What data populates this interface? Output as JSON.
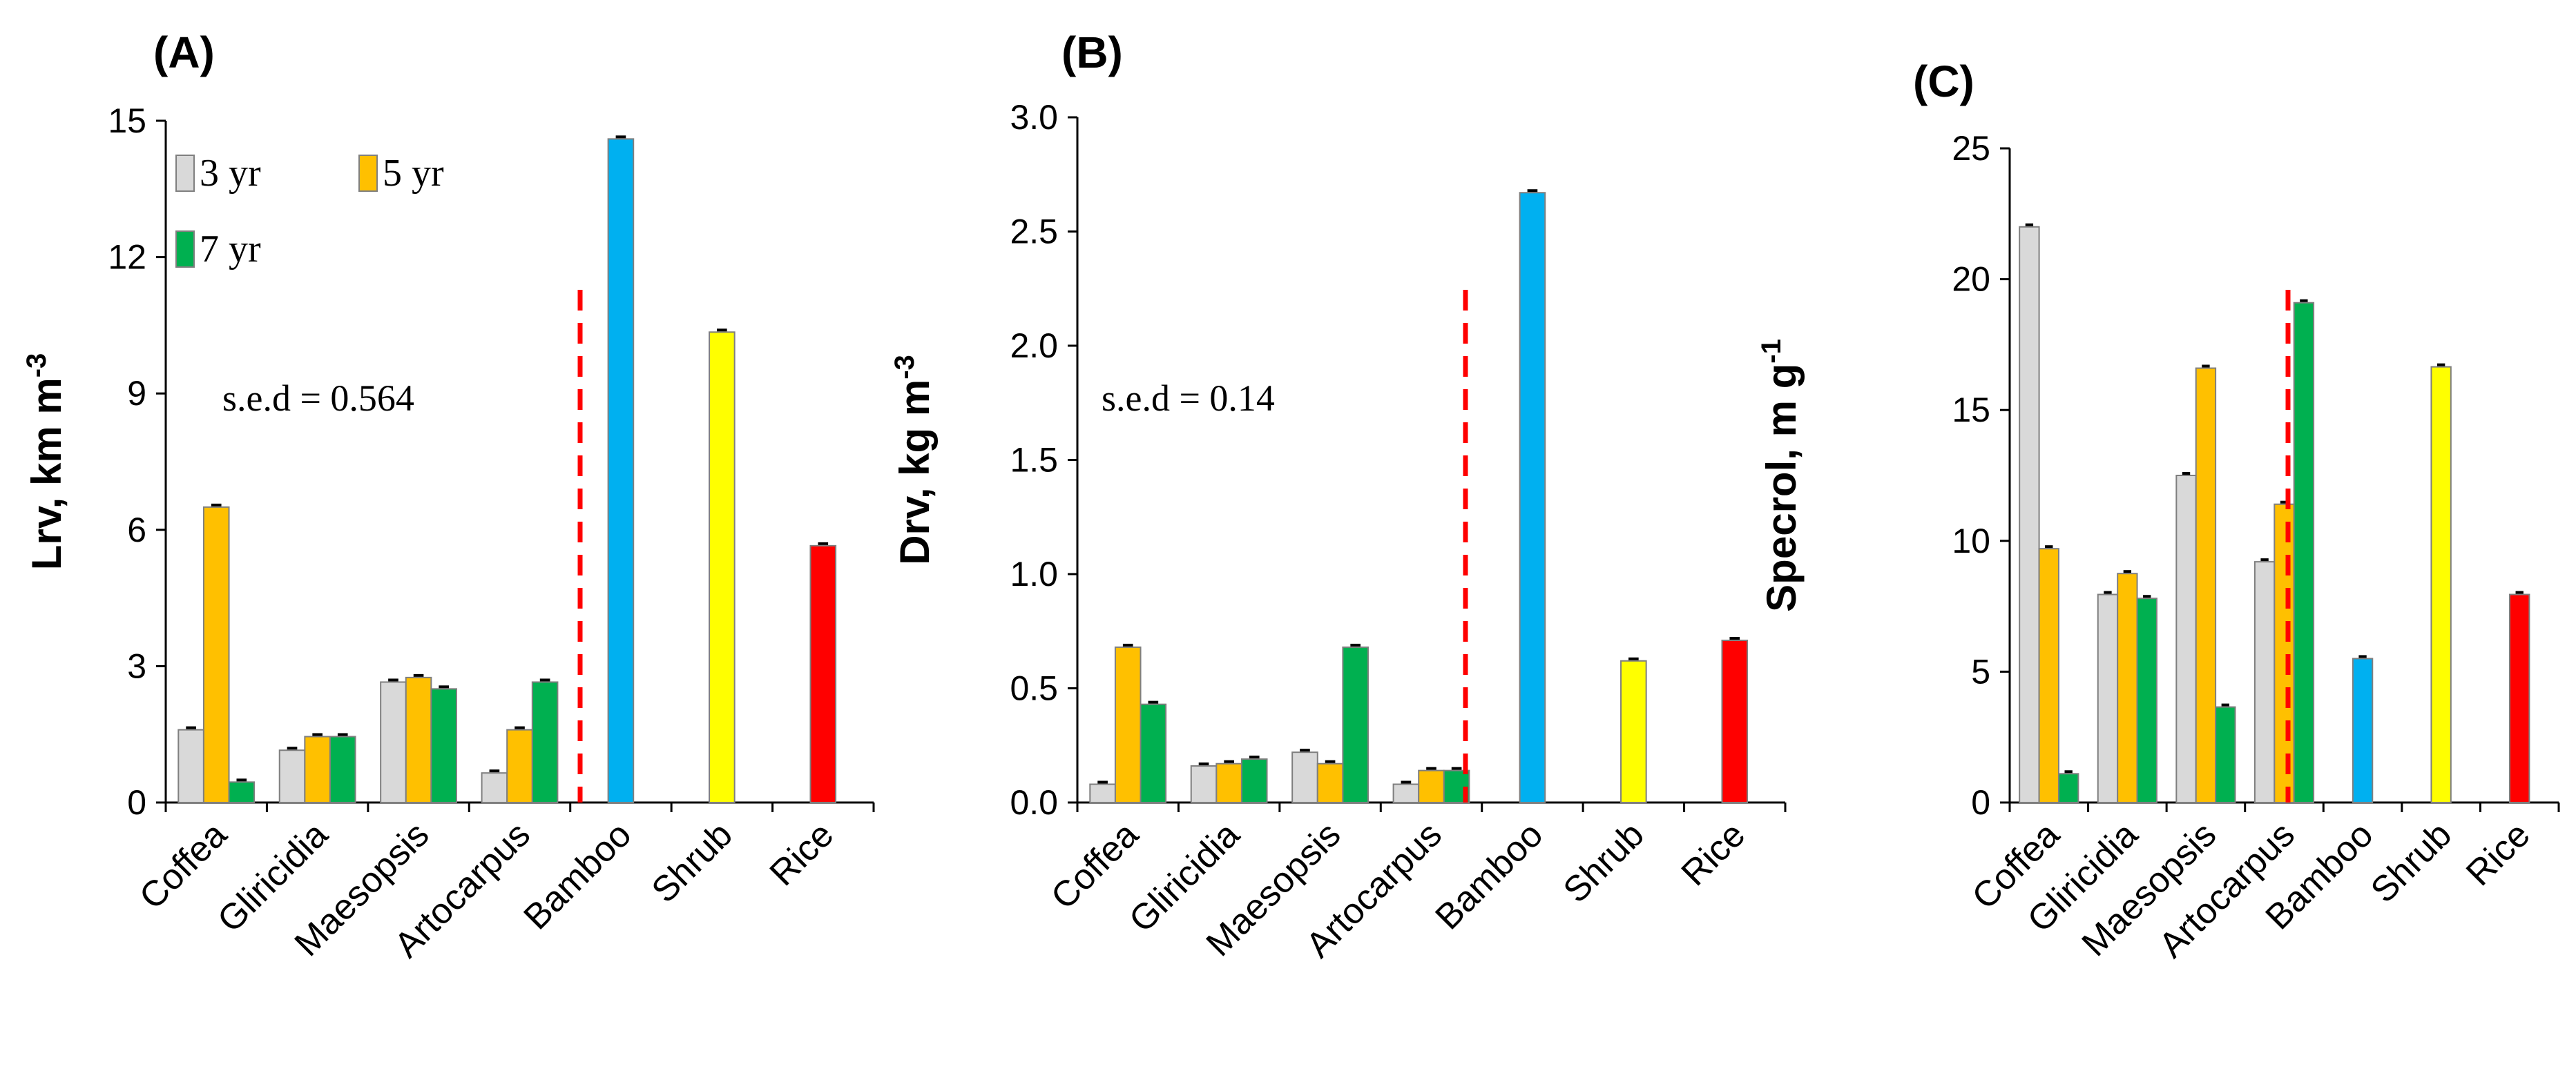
{
  "colors": {
    "3 yr": "#d9d9d9",
    "5 yr": "#ffc000",
    "7 yr": "#00b050",
    "Bamboo": "#00b0f0",
    "Shrub": "#ffff00",
    "Rice": "#ff0000",
    "divider": "#ff0000"
  },
  "legend": [
    "3 yr",
    "5 yr",
    "7 yr"
  ],
  "chart_data": [
    {
      "type": "bar",
      "panel": "(A)",
      "ylabel": "Lrv, km m",
      "ylabel_sup": "-3",
      "ylim": [
        0,
        15
      ],
      "yticks": [
        "0",
        "3",
        "6",
        "9",
        "12",
        "15"
      ],
      "annotation": "s.e.d = 0.564",
      "categories": [
        "Coffea",
        "Gliricidia",
        "Maesopsis",
        "Artocarpus",
        "Bamboo",
        "Shrub",
        "Rice"
      ],
      "series": [
        {
          "name": "3 yr",
          "values": [
            1.6,
            1.15,
            2.65,
            0.65,
            null,
            null,
            null
          ]
        },
        {
          "name": "5 yr",
          "values": [
            6.5,
            1.45,
            2.75,
            1.6,
            null,
            null,
            null
          ]
        },
        {
          "name": "7 yr",
          "values": [
            0.45,
            1.45,
            2.5,
            2.65,
            null,
            null,
            null
          ]
        }
      ],
      "singles": [
        {
          "category": "Bamboo",
          "value": 14.6
        },
        {
          "category": "Shrub",
          "value": 10.35
        },
        {
          "category": "Rice",
          "value": 5.65
        }
      ]
    },
    {
      "type": "bar",
      "panel": "(B)",
      "ylabel": "Drv, kg m",
      "ylabel_sup": "-3",
      "ylim": [
        0,
        3.0
      ],
      "yticks": [
        "0.0",
        "0.5",
        "1.0",
        "1.5",
        "2.0",
        "2.5",
        "3.0"
      ],
      "annotation": "s.e.d = 0.14",
      "categories": [
        "Coffea",
        "Gliricidia",
        "Maesopsis",
        "Artocarpus",
        "Bamboo",
        "Shrub",
        "Rice"
      ],
      "series": [
        {
          "name": "3 yr",
          "values": [
            0.08,
            0.16,
            0.22,
            0.08,
            null,
            null,
            null
          ]
        },
        {
          "name": "5 yr",
          "values": [
            0.68,
            0.17,
            0.17,
            0.14,
            null,
            null,
            null
          ]
        },
        {
          "name": "7 yr",
          "values": [
            0.43,
            0.19,
            0.68,
            0.14,
            null,
            null,
            null
          ]
        }
      ],
      "singles": [
        {
          "category": "Bamboo",
          "value": 2.67
        },
        {
          "category": "Shrub",
          "value": 0.62
        },
        {
          "category": "Rice",
          "value": 0.71
        }
      ]
    },
    {
      "type": "bar",
      "panel": "(C)",
      "ylabel": "Specrol, m g",
      "ylabel_sup": "-1",
      "ylim": [
        0,
        25
      ],
      "yticks": [
        "0",
        "5",
        "10",
        "15",
        "20",
        "25"
      ],
      "annotation": "",
      "categories": [
        "Coffea",
        "Gliricidia",
        "Maesopsis",
        "Artocarpus",
        "Bamboo",
        "Shrub",
        "Rice"
      ],
      "series": [
        {
          "name": "3 yr",
          "values": [
            22.0,
            7.95,
            12.5,
            9.2,
            null,
            null,
            null
          ]
        },
        {
          "name": "5 yr",
          "values": [
            9.7,
            8.75,
            16.6,
            11.4,
            null,
            null,
            null
          ]
        },
        {
          "name": "7 yr",
          "values": [
            1.1,
            7.8,
            3.65,
            19.1,
            null,
            null,
            null
          ]
        }
      ],
      "singles": [
        {
          "category": "Bamboo",
          "value": 5.5
        },
        {
          "category": "Shrub",
          "value": 16.65
        },
        {
          "category": "Rice",
          "value": 7.95
        }
      ]
    }
  ]
}
